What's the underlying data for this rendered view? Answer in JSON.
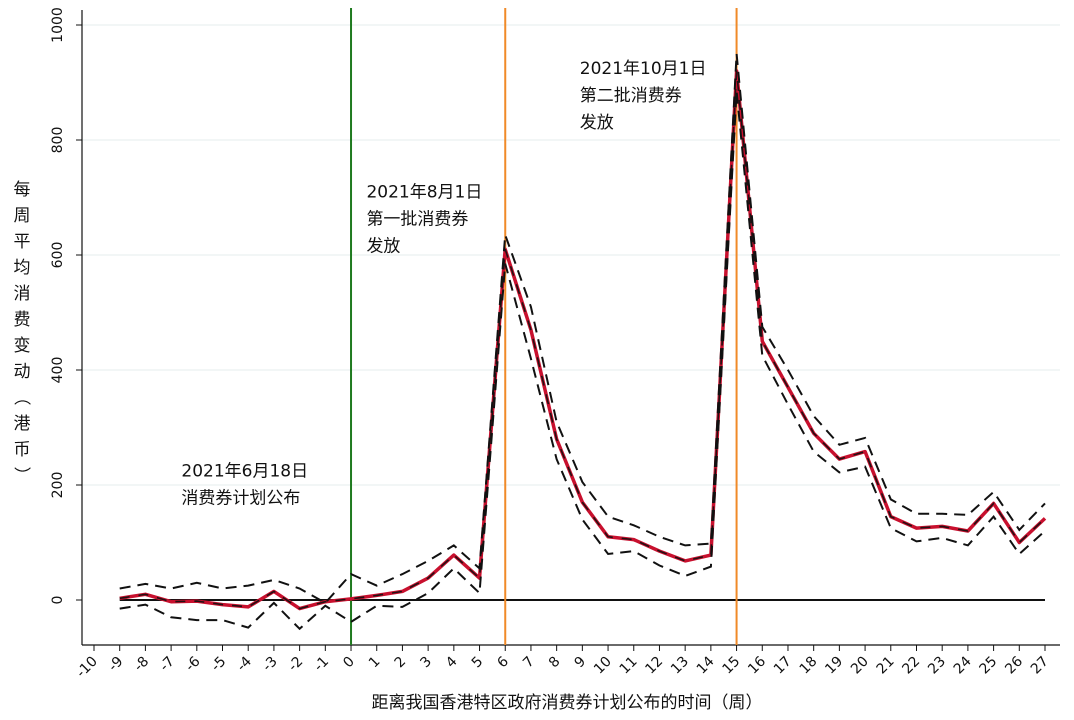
{
  "chart_data": {
    "type": "line",
    "xlabel": "距离我国香港特区政府消费券计划公布的时间（周）",
    "ylabel": "每周平均消费变动（港币）",
    "x": [
      -9,
      -8,
      -7,
      -6,
      -5,
      -4,
      -3,
      -2,
      -1,
      0,
      1,
      2,
      3,
      4,
      5,
      6,
      7,
      8,
      9,
      10,
      11,
      12,
      13,
      14,
      15,
      16,
      17,
      18,
      19,
      20,
      21,
      22,
      23,
      24,
      25,
      26,
      27
    ],
    "xlim": [
      -10,
      27
    ],
    "ylim": [
      -80,
      1030
    ],
    "y_ticks": [
      0,
      200,
      400,
      600,
      800,
      1000
    ],
    "x_ticks": [
      -10,
      -9,
      -8,
      -7,
      -6,
      -5,
      -4,
      -3,
      -2,
      -1,
      0,
      1,
      2,
      3,
      4,
      5,
      6,
      7,
      8,
      9,
      10,
      11,
      12,
      13,
      14,
      15,
      16,
      17,
      18,
      19,
      20,
      21,
      22,
      23,
      24,
      25,
      26,
      27
    ],
    "grid": true,
    "zero_line": true,
    "series": [
      {
        "role": "estimate",
        "color": "#c8102e",
        "values": [
          3,
          10,
          -3,
          -2,
          -8,
          -12,
          15,
          -15,
          -3,
          2,
          8,
          15,
          38,
          78,
          38,
          610,
          470,
          280,
          170,
          110,
          105,
          85,
          68,
          78,
          920,
          450,
          370,
          290,
          245,
          258,
          145,
          125,
          128,
          120,
          168,
          100,
          142
        ]
      },
      {
        "role": "upper",
        "color": "#111111",
        "values": [
          20,
          28,
          20,
          30,
          20,
          25,
          35,
          20,
          -5,
          45,
          25,
          45,
          68,
          95,
          55,
          635,
          510,
          310,
          205,
          145,
          130,
          110,
          95,
          98,
          950,
          475,
          400,
          320,
          270,
          282,
          175,
          150,
          150,
          148,
          188,
          122,
          168
        ]
      },
      {
        "role": "lower",
        "color": "#111111",
        "values": [
          -15,
          -8,
          -30,
          -35,
          -35,
          -48,
          -5,
          -50,
          -10,
          -38,
          -10,
          -12,
          12,
          55,
          12,
          585,
          420,
          245,
          140,
          80,
          85,
          60,
          42,
          58,
          885,
          425,
          340,
          258,
          222,
          232,
          125,
          102,
          108,
          95,
          145,
          80,
          120
        ]
      }
    ],
    "vlines": [
      {
        "x": 0,
        "color": "#1f7a1f"
      },
      {
        "x": 6,
        "color": "#f08a28"
      },
      {
        "x": 15,
        "color": "#f08a28"
      }
    ],
    "annotations": [
      {
        "lines": [
          "2021年6月18日",
          "消费券计划公布"
        ],
        "x": -6.6,
        "y": 215
      },
      {
        "lines": [
          "2021年8月1日",
          "第一批消费券",
          "发放"
        ],
        "x": 0.6,
        "y": 700
      },
      {
        "lines": [
          "2021年10月1日",
          "第二批消费券",
          "发放"
        ],
        "x": 8.9,
        "y": 915
      }
    ]
  }
}
